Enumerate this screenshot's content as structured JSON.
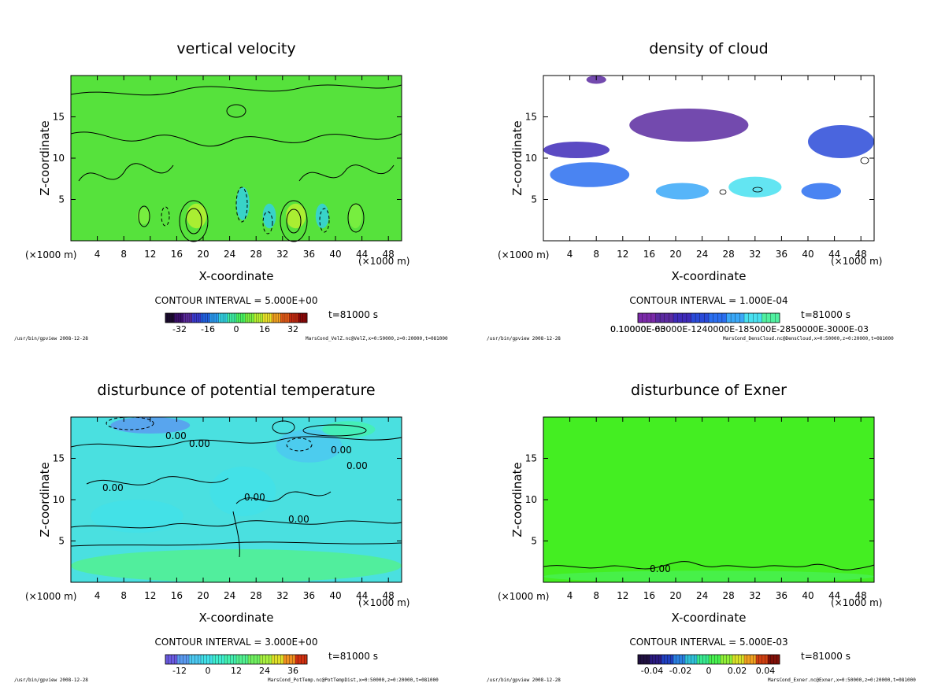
{
  "palettes": {
    "velocity": [
      "#1a0a2e",
      "#3b0f6b",
      "#5a2a9a",
      "#3a3acc",
      "#2060e0",
      "#2a9af0",
      "#32d0e0",
      "#3de8a0",
      "#48f060",
      "#7cf040",
      "#b8f030",
      "#e8e028",
      "#f0a020",
      "#e05a18",
      "#c02a10",
      "#8a0808"
    ],
    "cloud": [
      "#7a2aa8",
      "#5b2aa0",
      "#3e2ab8",
      "#2a4ad8",
      "#2a6ef0",
      "#3aa8f8",
      "#48e0f0",
      "#50f0a0"
    ],
    "ptemp": [
      "#6a5ae0",
      "#5a9af0",
      "#4cc8f0",
      "#42e0e8",
      "#40eed0",
      "#44f0b0",
      "#52f090",
      "#70f060",
      "#a8f040",
      "#e0e028",
      "#f09020",
      "#d03010"
    ],
    "exner": [
      "#201040",
      "#2a1a80",
      "#2040c0",
      "#2a80e0",
      "#30c0d8",
      "#38e890",
      "#48f050",
      "#90f038",
      "#d8e028",
      "#f0a020",
      "#d04010",
      "#801008"
    ]
  },
  "panels": [
    {
      "id": "vertical-velocity",
      "title": "vertical velocity",
      "xlabel": "X-coordinate",
      "ylabel": "Z-coordinate",
      "xunit_left": "(×1000 m)",
      "xunit_right": "(×1000 m)",
      "contour_interval": "CONTOUR INTERVAL = 5.000E+00",
      "time": "t=81000 s",
      "footer_left": "/usr/bin/gpview  2008-12-28",
      "footer_right": "MarsCond_VelZ.nc@VelZ,x=0:50000,z=0:20000,t=081000",
      "colorbar_ticks": [
        "-32",
        "-16",
        "0",
        "16",
        "32"
      ],
      "fill": "#56e23c",
      "palette": "velocity"
    },
    {
      "id": "density-of-cloud",
      "title": "density of cloud",
      "xlabel": "X-coordinate",
      "ylabel": "Z-coordinate",
      "xunit_left": "(×1000 m)",
      "xunit_right": "(×1000 m)",
      "contour_interval": "CONTOUR INTERVAL = 1.000E-04",
      "time": "t=81000 s",
      "footer_left": "/usr/bin/gpview  2008-12-28",
      "footer_right": "MarsCond_DensCloud.nc@DensCloud,x=0:50000,z=0:20000,t=081000",
      "colorbar_ticks": [
        "0.10000E-03"
      ],
      "colorbar_overlap_text": "0.10000E-60000E-1240000E-185000E-2850000E-3000E-03",
      "fill": "#ffffff",
      "palette": "cloud"
    },
    {
      "id": "disturbance-potential-temperature",
      "title": "disturbunce of potential temperature",
      "xlabel": "X-coordinate",
      "ylabel": "Z-coordinate",
      "xunit_left": "(×1000 m)",
      "xunit_right": "(×1000 m)",
      "contour_interval": "CONTOUR INTERVAL = 3.000E+00",
      "time": "t=81000 s",
      "footer_left": "/usr/bin/gpview  2008-12-28",
      "footer_right": "MarsCond_PotTemp.nc@PotTempDist,x=0:50000,z=0:20000,t=081000",
      "colorbar_ticks": [
        "-12",
        "0",
        "12",
        "24",
        "36"
      ],
      "contour_labels": [
        "0.00",
        "0.00",
        "0.00",
        "0.00",
        "0.00",
        "0.00",
        "0.00"
      ],
      "fill": "#4ae0e0",
      "palette": "ptemp"
    },
    {
      "id": "disturbance-exner",
      "title": "disturbunce of Exner",
      "xlabel": "X-coordinate",
      "ylabel": "Z-coordinate",
      "xunit_left": "(×1000 m)",
      "xunit_right": "(×1000 m)",
      "contour_interval": "CONTOUR INTERVAL = 5.000E-03",
      "time": "t=81000 s",
      "footer_left": "/usr/bin/gpview  2008-12-28",
      "footer_right": "MarsCond_Exner.nc@Exner,x=0:50000,z=0:20000,t=081000",
      "colorbar_ticks": [
        "-0.04",
        "-0.02",
        "0",
        "0.02",
        "0.04"
      ],
      "contour_labels": [
        "0.00"
      ],
      "fill": "#44ee22",
      "palette": "exner"
    }
  ],
  "chart_data": [
    {
      "type": "heatmap",
      "title": "vertical velocity",
      "xlabel": "X-coordinate",
      "ylabel": "Z-coordinate",
      "xlim": [
        0,
        50
      ],
      "ylim": [
        0,
        20
      ],
      "xticks": [
        4,
        8,
        12,
        16,
        20,
        24,
        28,
        32,
        36,
        40,
        44,
        48
      ],
      "yticks": [
        5,
        10,
        15
      ],
      "colorbar_ticks": [
        -32,
        -16,
        0,
        16,
        32
      ],
      "contour_interval": 5.0,
      "cells": [
        {
          "x": 19,
          "z": 3,
          "w": 3,
          "h": 3,
          "value": 12
        },
        {
          "x": 34,
          "z": 3,
          "w": 3,
          "h": 3,
          "value": 12
        },
        {
          "x": 43,
          "z": 3,
          "w": 2,
          "h": 3,
          "value": 10
        },
        {
          "x": 11,
          "z": 3,
          "w": 2,
          "h": 2,
          "value": 8
        },
        {
          "x": 26,
          "z": 4.5,
          "w": 2,
          "h": 4,
          "value": -10
        },
        {
          "x": 30,
          "z": 3,
          "w": 2,
          "h": 3,
          "value": -8
        },
        {
          "x": 38,
          "z": 3,
          "w": 2,
          "h": 3,
          "value": -8
        }
      ]
    },
    {
      "type": "heatmap",
      "title": "density of cloud",
      "xlabel": "X-coordinate",
      "ylabel": "Z-coordinate",
      "xlim": [
        0,
        50
      ],
      "ylim": [
        0,
        20
      ],
      "xticks": [
        4,
        8,
        12,
        16,
        20,
        24,
        28,
        32,
        36,
        40,
        44,
        48
      ],
      "yticks": [
        5,
        10,
        15
      ],
      "colorbar_ticks": [
        0.0001
      ],
      "contour_interval": 0.0001,
      "cells": [
        {
          "x": 8,
          "z": 19.5,
          "w": 3,
          "h": 1,
          "value": 0.0001
        },
        {
          "x": 22,
          "z": 14,
          "w": 18,
          "h": 4,
          "value": 0.0001
        },
        {
          "x": 5,
          "z": 11,
          "w": 10,
          "h": 2,
          "value": 0.0002
        },
        {
          "x": 45,
          "z": 12,
          "w": 10,
          "h": 4,
          "value": 0.0004
        },
        {
          "x": 7,
          "z": 8,
          "w": 12,
          "h": 3,
          "value": 0.0006
        },
        {
          "x": 21,
          "z": 6,
          "w": 8,
          "h": 2,
          "value": 0.0009
        },
        {
          "x": 32,
          "z": 6.5,
          "w": 8,
          "h": 2.5,
          "value": 0.0012
        },
        {
          "x": 42,
          "z": 6,
          "w": 6,
          "h": 2,
          "value": 0.0008
        }
      ]
    },
    {
      "type": "heatmap",
      "title": "disturbunce of potential temperature",
      "xlabel": "X-coordinate",
      "ylabel": "Z-coordinate",
      "xlim": [
        0,
        50
      ],
      "ylim": [
        0,
        20
      ],
      "xticks": [
        4,
        8,
        12,
        16,
        20,
        24,
        28,
        32,
        36,
        40,
        44,
        48
      ],
      "yticks": [
        5,
        10,
        15
      ],
      "colorbar_ticks": [
        -12,
        0,
        12,
        24,
        36
      ],
      "contour_interval": 3.0,
      "cells": [
        {
          "x": 25,
          "z": 2,
          "w": 50,
          "h": 4,
          "value": 14
        },
        {
          "x": 12,
          "z": 19,
          "w": 12,
          "h": 2,
          "value": -14
        },
        {
          "x": 36,
          "z": 16.5,
          "w": 10,
          "h": 4,
          "value": -8
        },
        {
          "x": 42,
          "z": 18.5,
          "w": 8,
          "h": 2,
          "value": 8
        },
        {
          "x": 10,
          "z": 8,
          "w": 14,
          "h": 4,
          "value": -4
        },
        {
          "x": 26,
          "z": 11,
          "w": 10,
          "h": 6,
          "value": -4
        }
      ]
    },
    {
      "type": "heatmap",
      "title": "disturbunce of Exner",
      "xlabel": "X-coordinate",
      "ylabel": "Z-coordinate",
      "xlim": [
        0,
        50
      ],
      "ylim": [
        0,
        20
      ],
      "xticks": [
        4,
        8,
        12,
        16,
        20,
        24,
        28,
        32,
        36,
        40,
        44,
        48
      ],
      "yticks": [
        5,
        10,
        15
      ],
      "colorbar_ticks": [
        -0.04,
        -0.02,
        0,
        0.02,
        0.04
      ],
      "contour_interval": 0.005,
      "cells": [
        {
          "x": 25,
          "z": 0.7,
          "w": 50,
          "h": 1.4,
          "value": 0.004
        }
      ]
    }
  ]
}
